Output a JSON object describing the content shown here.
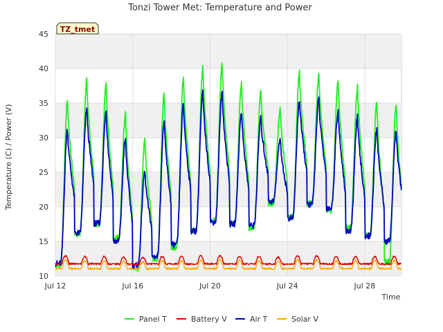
{
  "chart_data": {
    "type": "line",
    "title": "Tonzi Tower Met: Temperature and Power",
    "xlabel": "Time",
    "ylabel": "Temperature (C) / Power (V)",
    "badge": "TZ_tmet",
    "xlim": [
      12,
      29.9
    ],
    "ylim": [
      10,
      45
    ],
    "yticks": [
      10,
      15,
      20,
      25,
      30,
      35,
      40,
      45
    ],
    "xticks": [
      {
        "value": 12,
        "label": "Jul 12"
      },
      {
        "value": 16,
        "label": "Jul 16"
      },
      {
        "value": 20,
        "label": "Jul 20"
      },
      {
        "value": 24,
        "label": "Jul 24"
      },
      {
        "value": 28,
        "label": "Jul 28"
      }
    ],
    "colors": {
      "panel_t": "#22ee22",
      "battery_v": "#dd0000",
      "air_t": "#0000bb",
      "solar_v": "#ffa500",
      "band": "#f0f0f0",
      "grid": "#dddddd",
      "badge_fill": "#ffffcc"
    },
    "series": [
      {
        "name": "Panel T",
        "key": "panel_t",
        "daily_min": [
          11.5,
          16,
          17.5,
          15.5,
          11,
          12.5,
          14,
          16.5,
          18,
          17.5,
          17,
          20.5,
          18.5,
          20.5,
          19.5,
          17,
          16,
          12
        ],
        "daily_max": [
          35.5,
          38.2,
          37.7,
          33.5,
          29.5,
          36.5,
          38.5,
          40,
          40.7,
          38,
          36.5,
          34,
          39.4,
          39,
          38,
          37.3,
          35,
          35
        ]
      },
      {
        "name": "Battery V",
        "key": "battery_v",
        "daily_min": [
          11.6,
          11.6,
          11.6,
          11.6,
          11.6,
          11.6,
          11.6,
          11.6,
          11.6,
          11.6,
          11.6,
          11.6,
          11.6,
          11.6,
          11.6,
          11.6,
          11.6,
          11.6
        ],
        "daily_max": [
          12.9,
          12.8,
          12.8,
          12.7,
          12.7,
          12.8,
          12.8,
          12.9,
          12.9,
          12.8,
          12.8,
          12.7,
          12.9,
          12.9,
          12.8,
          12.8,
          12.8,
          12.8
        ]
      },
      {
        "name": "Air T",
        "key": "air_t",
        "daily_min": [
          11.8,
          16.2,
          17.6,
          15,
          11.5,
          12.8,
          14.5,
          16.5,
          17.8,
          17.5,
          17.3,
          20.8,
          18.3,
          20.3,
          19.8,
          16.5,
          15.8,
          15
        ],
        "daily_max": [
          31.2,
          34.2,
          33.8,
          29.8,
          25.1,
          32.3,
          34.8,
          36.5,
          36.6,
          33.8,
          32.8,
          29.8,
          35.5,
          35.5,
          34,
          33,
          31.2,
          31
        ]
      },
      {
        "name": "Solar V",
        "key": "solar_v",
        "daily_min": [
          10.9,
          10.9,
          10.9,
          10.9,
          10.9,
          10.9,
          10.9,
          10.9,
          10.9,
          10.9,
          10.9,
          10.9,
          10.9,
          10.9,
          10.9,
          10.9,
          10.9,
          10.9
        ],
        "daily_max": [
          12.3,
          12.2,
          12.2,
          12.1,
          12.0,
          12.2,
          12.2,
          12.3,
          12.3,
          12.2,
          12.2,
          12.1,
          12.3,
          12.3,
          12.2,
          12.2,
          12.2,
          12.2
        ]
      }
    ],
    "legend_position": "bottom"
  }
}
